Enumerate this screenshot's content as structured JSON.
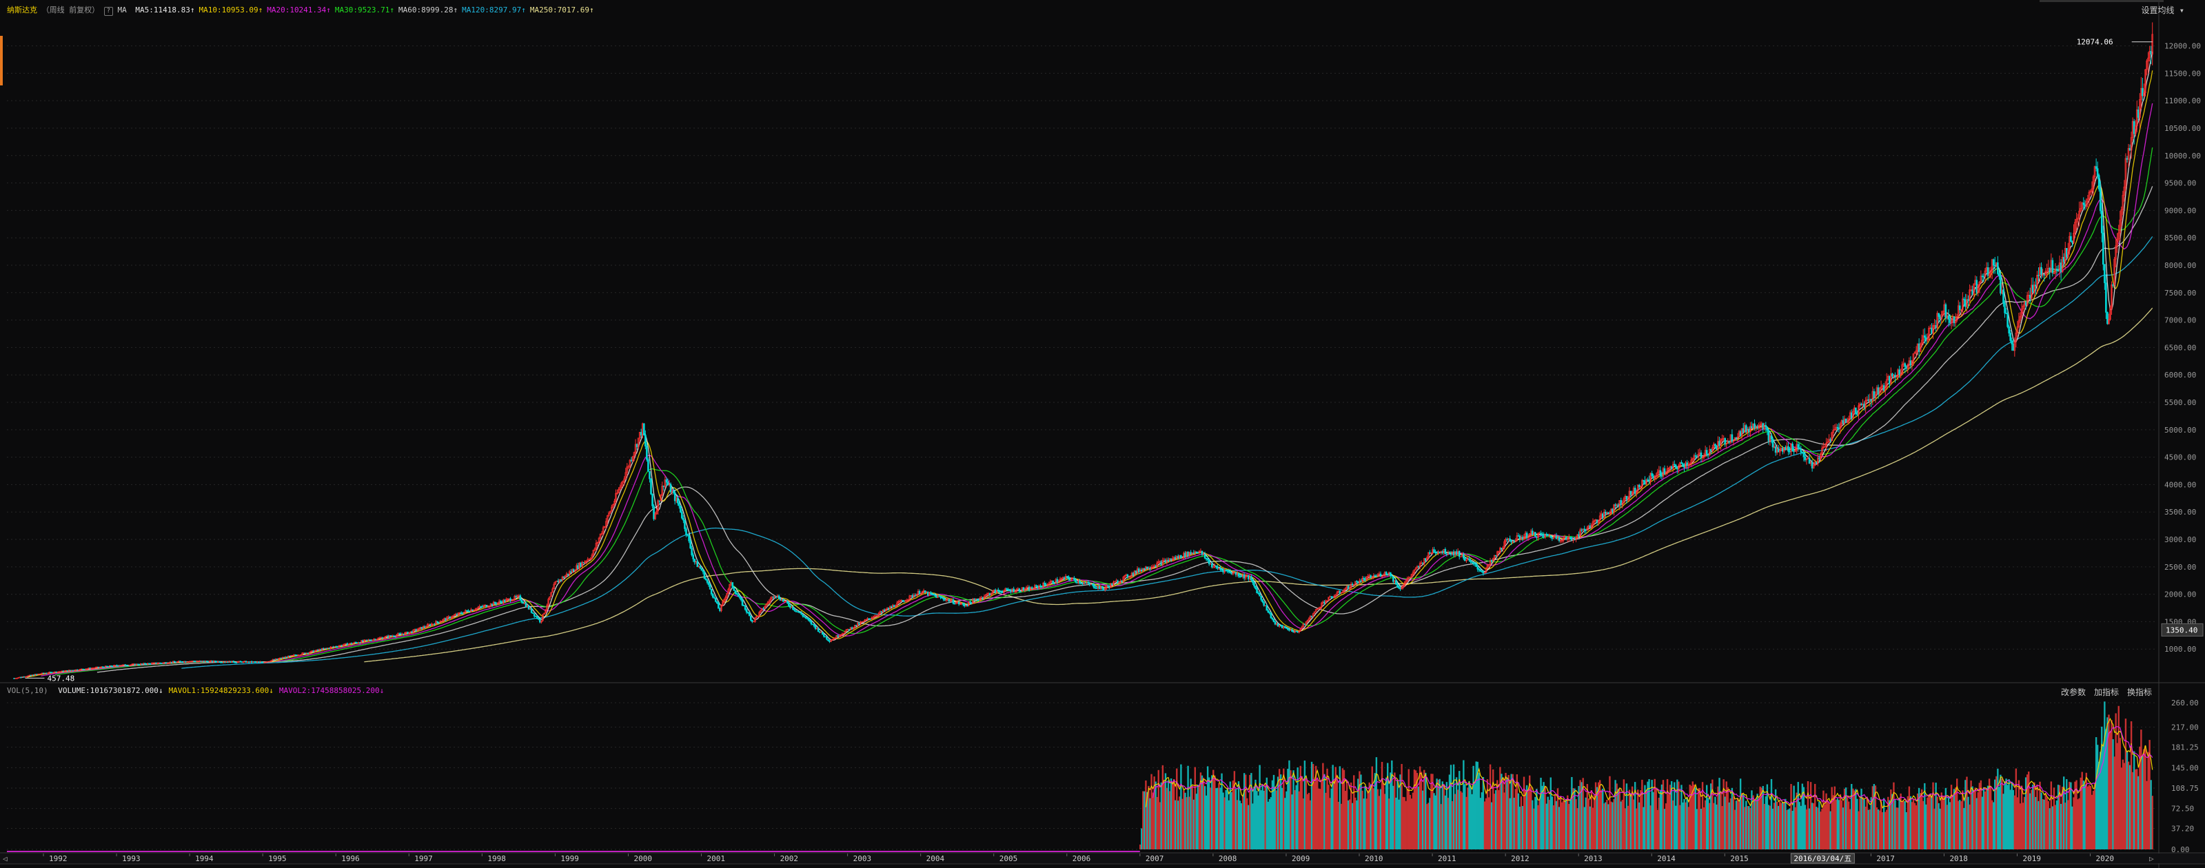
{
  "header": {
    "symbol": "纳斯达克",
    "period": "（周线 前复权）",
    "ma_label": "MA",
    "ma_items": [
      {
        "text": "MA5:11418.83",
        "arrow": "↑",
        "color": "#e8e8e8"
      },
      {
        "text": "MA10:10953.09",
        "arrow": "↑",
        "color": "#f0d000"
      },
      {
        "text": "MA20:10241.34",
        "arrow": "↑",
        "color": "#e020e0"
      },
      {
        "text": "MA30:9523.71",
        "arrow": "↑",
        "color": "#20e020"
      },
      {
        "text": "MA60:8999.28",
        "arrow": "↑",
        "color": "#d0d0d0"
      },
      {
        "text": "MA120:8297.97",
        "arrow": "↑",
        "color": "#20b8e0"
      },
      {
        "text": "MA250:7017.69",
        "arrow": "↑",
        "color": "#e8e090"
      }
    ],
    "settings_label": "设置均线"
  },
  "volume_header": {
    "label": "VOL(5,10)",
    "items": [
      {
        "text": "VOLUME:10167301872.000",
        "arrow": "↓",
        "color": "#e8e8e8"
      },
      {
        "text": "MAVOL1:15924829233.600",
        "arrow": "↓",
        "color": "#f0d000"
      },
      {
        "text": "MAVOL2:17458858025.200",
        "arrow": "↓",
        "color": "#e020e0"
      }
    ],
    "buttons": [
      "改参数",
      "加指标",
      "换指标"
    ]
  },
  "colors": {
    "up": "#ff3232",
    "down": "#00d8d8",
    "grid": "#272727",
    "ma120": "#20b8e0",
    "ma250": "#e8e090"
  },
  "chart_data": [
    {
      "type": "candlestick",
      "title": "纳斯达克",
      "x_ticks": [
        "1992",
        "1993",
        "1994",
        "1995",
        "1996",
        "1997",
        "1998",
        "1999",
        "2000",
        "2001",
        "2002",
        "2003",
        "2004",
        "2005",
        "2006",
        "2007",
        "2008",
        "2009",
        "2010",
        "2011",
        "2012",
        "2013",
        "2014",
        "2015",
        "2016",
        "2017",
        "2018",
        "2019",
        "2020"
      ],
      "x_range": [
        1991.5,
        2020.9
      ],
      "y_ticks": [
        1000,
        1500,
        2000,
        2500,
        3000,
        3500,
        4000,
        4500,
        5000,
        5500,
        6000,
        6500,
        7000,
        7500,
        8000,
        8500,
        9000,
        9500,
        10000,
        10500,
        11000,
        11500,
        12000
      ],
      "y_tick_labels": [
        "1000.00",
        "1500.00",
        "2000.00",
        "2500.00",
        "3000.00",
        "3500.00",
        "4000.00",
        "4500.00",
        "5000.00",
        "5500.00",
        "6000.00",
        "6500.00",
        "7000.00",
        "7500.00",
        "8000.00",
        "8500.00",
        "9000.00",
        "9500.00",
        "10000.00",
        "10500.00",
        "11000.00",
        "11500.00",
        "12000.00"
      ],
      "ylim": [
        400,
        12560
      ],
      "annotations": {
        "high": "12074.06",
        "low": "457.48",
        "current": "1350.40",
        "crosshair_date": "2016/03/04/五"
      },
      "close_anchors": [
        [
          1991.6,
          470
        ],
        [
          1992.0,
          560
        ],
        [
          1993.0,
          700
        ],
        [
          1994.0,
          780
        ],
        [
          1995.0,
          760
        ],
        [
          1996.0,
          1050
        ],
        [
          1997.0,
          1300
        ],
        [
          1997.8,
          1700
        ],
        [
          1998.5,
          1950
        ],
        [
          1998.8,
          1500
        ],
        [
          1999.0,
          2200
        ],
        [
          1999.5,
          2700
        ],
        [
          1999.9,
          4000
        ],
        [
          2000.2,
          5050
        ],
        [
          2000.35,
          3400
        ],
        [
          2000.5,
          4100
        ],
        [
          2000.7,
          3600
        ],
        [
          2000.9,
          2600
        ],
        [
          2001.0,
          2450
        ],
        [
          2001.25,
          1700
        ],
        [
          2001.4,
          2200
        ],
        [
          2001.7,
          1500
        ],
        [
          2002.0,
          2000
        ],
        [
          2002.4,
          1600
        ],
        [
          2002.75,
          1150
        ],
        [
          2003.0,
          1350
        ],
        [
          2003.5,
          1700
        ],
        [
          2004.0,
          2050
        ],
        [
          2004.6,
          1800
        ],
        [
          2005.0,
          2050
        ],
        [
          2005.5,
          2100
        ],
        [
          2006.0,
          2300
        ],
        [
          2006.5,
          2100
        ],
        [
          2007.0,
          2450
        ],
        [
          2007.8,
          2800
        ],
        [
          2008.0,
          2500
        ],
        [
          2008.5,
          2300
        ],
        [
          2008.85,
          1450
        ],
        [
          2009.15,
          1300
        ],
        [
          2009.5,
          1850
        ],
        [
          2010.0,
          2250
        ],
        [
          2010.4,
          2400
        ],
        [
          2010.55,
          2100
        ],
        [
          2011.0,
          2800
        ],
        [
          2011.35,
          2750
        ],
        [
          2011.7,
          2400
        ],
        [
          2012.0,
          2950
        ],
        [
          2012.35,
          3100
        ],
        [
          2012.9,
          3000
        ],
        [
          2013.5,
          3600
        ],
        [
          2014.0,
          4150
        ],
        [
          2014.5,
          4400
        ],
        [
          2015.0,
          4800
        ],
        [
          2015.5,
          5150
        ],
        [
          2015.7,
          4600
        ],
        [
          2016.0,
          4700
        ],
        [
          2016.2,
          4300
        ],
        [
          2016.5,
          5000
        ],
        [
          2017.0,
          5600
        ],
        [
          2017.5,
          6200
        ],
        [
          2018.0,
          7200
        ],
        [
          2018.1,
          7000
        ],
        [
          2018.7,
          8100
        ],
        [
          2018.95,
          6400
        ],
        [
          2019.0,
          6900
        ],
        [
          2019.3,
          7900
        ],
        [
          2019.6,
          8000
        ],
        [
          2020.0,
          9400
        ],
        [
          2020.1,
          9800
        ],
        [
          2020.23,
          6800
        ],
        [
          2020.5,
          10000
        ],
        [
          2020.7,
          11100
        ],
        [
          2020.85,
          12074
        ]
      ],
      "series": [
        {
          "name": "MA5",
          "value": 11418.83
        },
        {
          "name": "MA10",
          "value": 10953.09
        },
        {
          "name": "MA20",
          "value": 10241.34
        },
        {
          "name": "MA30",
          "value": 9523.71
        },
        {
          "name": "MA60",
          "value": 8999.28
        },
        {
          "name": "MA120",
          "value": 8297.97
        },
        {
          "name": "MA250",
          "value": 7017.69
        }
      ]
    },
    {
      "type": "bar",
      "title": "VOL(5,10)",
      "y_tick_labels": [
        "0.00",
        "37.20",
        "72.50",
        "108.75",
        "145.00",
        "181.25",
        "217.00",
        "260.00"
      ],
      "y_ticks": [
        0,
        37.2,
        72.5,
        108.75,
        145,
        181.25,
        217,
        260
      ],
      "ylim": [
        0,
        270
      ],
      "volume_start": 2007.0,
      "volume_anchors": [
        [
          2007.0,
          0
        ],
        [
          2007.05,
          95
        ],
        [
          2007.3,
          118
        ],
        [
          2008.0,
          120
        ],
        [
          2008.5,
          112
        ],
        [
          2009.0,
          125
        ],
        [
          2009.5,
          118
        ],
        [
          2010.0,
          112
        ],
        [
          2010.2,
          140
        ],
        [
          2010.5,
          120
        ],
        [
          2011.0,
          110
        ],
        [
          2011.5,
          128
        ],
        [
          2012.0,
          110
        ],
        [
          2012.5,
          100
        ],
        [
          2013.0,
          100
        ],
        [
          2014.0,
          100
        ],
        [
          2015.0,
          98
        ],
        [
          2016.0,
          95
        ],
        [
          2017.0,
          90
        ],
        [
          2018.0,
          95
        ],
        [
          2018.8,
          118
        ],
        [
          2019.0,
          110
        ],
        [
          2019.5,
          100
        ],
        [
          2020.0,
          110
        ],
        [
          2020.2,
          230
        ],
        [
          2020.5,
          190
        ],
        [
          2020.8,
          160
        ],
        [
          2020.85,
          130
        ]
      ]
    }
  ]
}
